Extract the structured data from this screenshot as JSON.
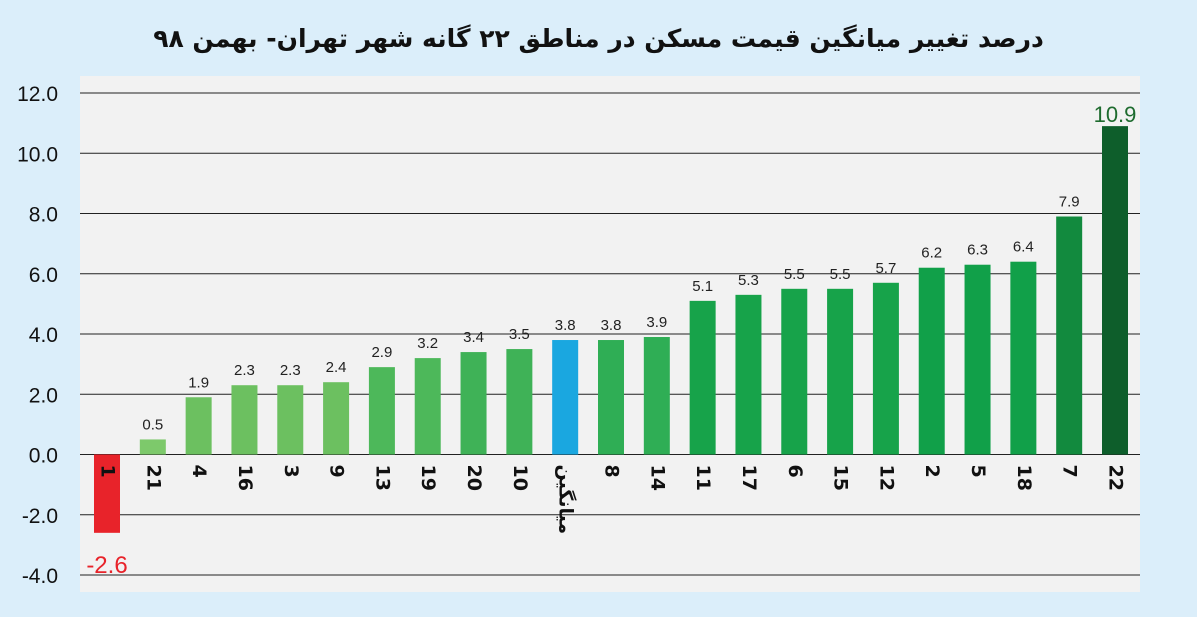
{
  "chart_data": {
    "type": "bar",
    "title": "درصد تغییر میانگین قیمت مسکن در مناطق ۲۲ گانه شهر تهران- بهمن ۹۸",
    "xlabel": "",
    "ylabel": "",
    "ylim": [
      -4,
      12
    ],
    "yticks": [
      "12.0",
      "10.0",
      "8.0",
      "6.0",
      "4.0",
      "2.0",
      "0.0",
      "-2.0",
      "-4.0"
    ],
    "grid": true,
    "categories": [
      "1",
      "21",
      "4",
      "16",
      "3",
      "9",
      "13",
      "19",
      "20",
      "10",
      "میانگین",
      "8",
      "14",
      "11",
      "17",
      "6",
      "15",
      "12",
      "2",
      "5",
      "18",
      "7",
      "22"
    ],
    "values": [
      -2.6,
      0.5,
      1.9,
      2.3,
      2.3,
      2.4,
      2.9,
      3.2,
      3.4,
      3.5,
      3.8,
      3.8,
      3.9,
      5.1,
      5.3,
      5.5,
      5.5,
      5.7,
      6.2,
      6.3,
      6.4,
      7.9,
      10.9
    ],
    "value_labels": [
      "-2.6",
      "0.5",
      "1.9",
      "2.3",
      "2.3",
      "2.4",
      "2.9",
      "3.2",
      "3.4",
      "3.5",
      "3.8",
      "3.8",
      "3.9",
      "5.1",
      "5.3",
      "5.5",
      "5.5",
      "5.7",
      "6.2",
      "6.3",
      "6.4",
      "7.9",
      "10.9"
    ],
    "colors": [
      "#e8232a",
      "#7dc96b",
      "#6cc060",
      "#6cc060",
      "#6cc060",
      "#6cc060",
      "#4db85a",
      "#4db85a",
      "#3fb257",
      "#3fb257",
      "#1aa7e0",
      "#2fae55",
      "#2fae55",
      "#17a34a",
      "#17a34a",
      "#17a34a",
      "#17a34a",
      "#17a34a",
      "#11a049",
      "#11a049",
      "#11a049",
      "#128a3e",
      "#0e5e2b"
    ],
    "highlight_label_colors": {
      "-2.6": "#e8232a",
      "10.9": "#1e6b2e"
    }
  }
}
